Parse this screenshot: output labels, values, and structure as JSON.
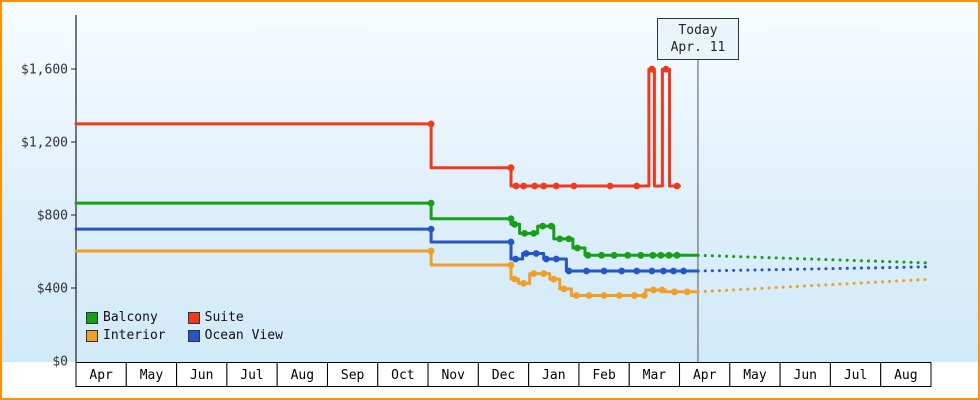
{
  "colors": {
    "frame_border": "#ff9000",
    "background_top": "#f8fdff",
    "background_bottom": "#cfe9f8",
    "axis": "#222222",
    "today_line": "#555555"
  },
  "today_box": {
    "line1": "Today",
    "line2": "Apr. 11"
  },
  "legend": {
    "items": [
      {
        "label": "Balcony",
        "color": "#16a016"
      },
      {
        "label": "Suite",
        "color": "#ee3b1e"
      },
      {
        "label": "Interior",
        "color": "#f0a028"
      },
      {
        "label": "Ocean View",
        "color": "#2456c8"
      }
    ]
  },
  "chart_data": {
    "type": "line",
    "x_axis": {
      "months": [
        "Apr",
        "May",
        "Jun",
        "Jul",
        "Aug",
        "Sep",
        "Oct",
        "Nov",
        "Dec",
        "Jan",
        "Feb",
        "Mar",
        "Apr",
        "May",
        "Jun",
        "Jul",
        "Aug"
      ],
      "today_position": 12.3667,
      "today_date_label": "Apr. 11"
    },
    "y_axis": {
      "ticks": [
        {
          "value": 0,
          "label": "$0"
        },
        {
          "value": 400,
          "label": "$400"
        },
        {
          "value": 800,
          "label": "$800"
        },
        {
          "value": 1200,
          "label": "$1,200"
        },
        {
          "value": 1600,
          "label": "$1,600"
        }
      ],
      "range": [
        0,
        1890
      ]
    },
    "series": [
      {
        "id": "interior",
        "name": "Interior",
        "color": "#f0a028",
        "path": [
          [
            0,
            603
          ],
          [
            7.06,
            603
          ],
          [
            7.06,
            526
          ],
          [
            8.65,
            526
          ],
          [
            8.65,
            449
          ],
          [
            8.8,
            449
          ],
          [
            8.8,
            425
          ],
          [
            9.02,
            425
          ],
          [
            9.02,
            479
          ],
          [
            9.42,
            479
          ],
          [
            9.42,
            449
          ],
          [
            9.62,
            449
          ],
          [
            9.62,
            395
          ],
          [
            9.85,
            395
          ],
          [
            9.85,
            359
          ],
          [
            11.33,
            359
          ],
          [
            11.33,
            389
          ],
          [
            11.72,
            389
          ],
          [
            11.72,
            379
          ],
          [
            12.37,
            379
          ]
        ],
        "markers": [
          [
            7.06,
            603
          ],
          [
            8.65,
            526
          ],
          [
            8.72,
            449
          ],
          [
            8.9,
            425
          ],
          [
            9.1,
            479
          ],
          [
            9.3,
            479
          ],
          [
            9.5,
            449
          ],
          [
            9.7,
            395
          ],
          [
            9.95,
            359
          ],
          [
            10.2,
            359
          ],
          [
            10.5,
            359
          ],
          [
            10.8,
            359
          ],
          [
            11.1,
            359
          ],
          [
            11.3,
            359
          ],
          [
            11.48,
            389
          ],
          [
            11.65,
            389
          ],
          [
            11.9,
            379
          ],
          [
            12.15,
            379
          ]
        ],
        "forecast": [
          [
            12.37,
            379
          ],
          [
            17,
            448
          ]
        ]
      },
      {
        "id": "ocean-view",
        "name": "Ocean View",
        "color": "#2456c8",
        "path": [
          [
            0,
            723
          ],
          [
            7.06,
            723
          ],
          [
            7.06,
            652
          ],
          [
            8.65,
            652
          ],
          [
            8.65,
            559
          ],
          [
            8.88,
            559
          ],
          [
            8.88,
            589
          ],
          [
            9.3,
            589
          ],
          [
            9.3,
            559
          ],
          [
            9.75,
            559
          ],
          [
            9.75,
            493
          ],
          [
            12.37,
            493
          ]
        ],
        "markers": [
          [
            7.06,
            723
          ],
          [
            8.65,
            652
          ],
          [
            8.74,
            559
          ],
          [
            8.95,
            589
          ],
          [
            9.15,
            589
          ],
          [
            9.35,
            559
          ],
          [
            9.55,
            559
          ],
          [
            9.8,
            493
          ],
          [
            10.15,
            493
          ],
          [
            10.5,
            493
          ],
          [
            10.85,
            493
          ],
          [
            11.15,
            493
          ],
          [
            11.45,
            493
          ],
          [
            11.68,
            493
          ],
          [
            11.88,
            493
          ],
          [
            12.08,
            493
          ]
        ],
        "forecast": [
          [
            12.37,
            493
          ],
          [
            17,
            516
          ]
        ]
      },
      {
        "id": "balcony",
        "name": "Balcony",
        "color": "#16a016",
        "path": [
          [
            0,
            865
          ],
          [
            7.06,
            865
          ],
          [
            7.06,
            779
          ],
          [
            8.65,
            779
          ],
          [
            8.65,
            749
          ],
          [
            8.82,
            749
          ],
          [
            8.82,
            699
          ],
          [
            9.18,
            699
          ],
          [
            9.18,
            739
          ],
          [
            9.5,
            739
          ],
          [
            9.5,
            669
          ],
          [
            9.88,
            669
          ],
          [
            9.88,
            619
          ],
          [
            10.12,
            619
          ],
          [
            10.12,
            579
          ],
          [
            12.37,
            579
          ]
        ],
        "markers": [
          [
            7.06,
            865
          ],
          [
            8.65,
            779
          ],
          [
            8.72,
            749
          ],
          [
            8.92,
            699
          ],
          [
            9.1,
            699
          ],
          [
            9.28,
            739
          ],
          [
            9.45,
            739
          ],
          [
            9.62,
            669
          ],
          [
            9.8,
            669
          ],
          [
            9.97,
            619
          ],
          [
            10.18,
            579
          ],
          [
            10.45,
            579
          ],
          [
            10.7,
            579
          ],
          [
            10.97,
            579
          ],
          [
            11.23,
            579
          ],
          [
            11.47,
            579
          ],
          [
            11.63,
            579
          ],
          [
            11.79,
            579
          ],
          [
            11.95,
            579
          ]
        ],
        "forecast": [
          [
            12.37,
            579
          ],
          [
            17,
            537
          ]
        ]
      },
      {
        "id": "suite",
        "name": "Suite",
        "color": "#ee3b1e",
        "path": [
          [
            0,
            1299
          ],
          [
            7.06,
            1299
          ],
          [
            7.06,
            1059
          ],
          [
            8.65,
            1059
          ],
          [
            8.65,
            959
          ],
          [
            11.39,
            959
          ],
          [
            11.39,
            1599
          ],
          [
            11.5,
            1599
          ],
          [
            11.5,
            959
          ],
          [
            11.66,
            959
          ],
          [
            11.66,
            1599
          ],
          [
            11.8,
            1599
          ],
          [
            11.8,
            959
          ],
          [
            12.0,
            959
          ]
        ],
        "markers": [
          [
            7.06,
            1299
          ],
          [
            8.65,
            1059
          ],
          [
            8.75,
            959
          ],
          [
            8.9,
            959
          ],
          [
            9.12,
            959
          ],
          [
            9.3,
            959
          ],
          [
            9.55,
            959
          ],
          [
            9.9,
            959
          ],
          [
            10.62,
            959
          ],
          [
            11.15,
            959
          ],
          [
            11.45,
            1599
          ],
          [
            11.73,
            1599
          ],
          [
            11.95,
            959
          ]
        ],
        "forecast": null
      }
    ]
  }
}
